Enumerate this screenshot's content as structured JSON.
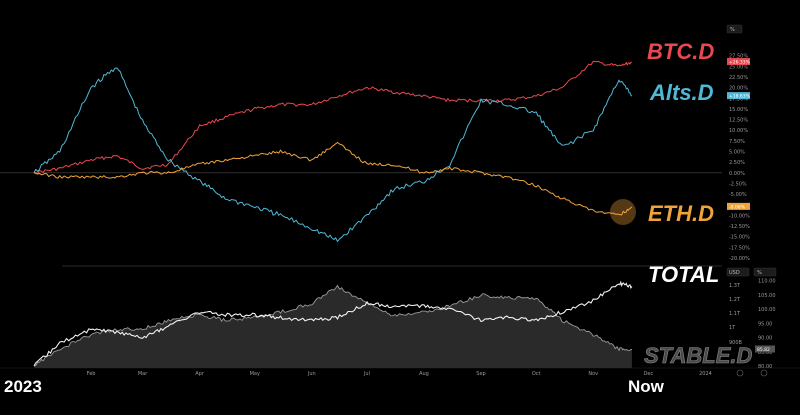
{
  "colors": {
    "btc": "#e8484f",
    "alts": "#4fb8d6",
    "eth": "#f0a33a",
    "total": "#f2f2f2",
    "stable": "#9a9a9a",
    "background": "#000000",
    "grid": "#3a3a3a"
  },
  "top_axis_button": "%",
  "bottom_axis_buttons": [
    "USD",
    "%"
  ],
  "corner_labels": {
    "start": "2023",
    "end": "Now"
  },
  "chart_data": [
    {
      "type": "line",
      "panel": "top",
      "y_unit": "percent change",
      "ylim": [
        -20,
        30
      ],
      "y_ticks": [
        "27.50%",
        "25.00%",
        "22.50%",
        "20.00%",
        "17.50%",
        "15.00%",
        "12.50%",
        "10.00%",
        "7.50%",
        "5.00%",
        "2.50%",
        "0.00%",
        "-2.50%",
        "-5.00%",
        "-7.50%",
        "-10.00%",
        "-12.50%",
        "-15.00%",
        "-17.50%",
        "-20.00%"
      ],
      "x_ticks": [
        "Feb",
        "Mar",
        "Apr",
        "May",
        "Jun",
        "Jul",
        "Aug",
        "Sep",
        "Oct",
        "Nov",
        "Dec",
        "2024"
      ],
      "x_domain": [
        "2023-01-01",
        "2024-01-10"
      ],
      "x": [
        "2023-01-01",
        "2023-01-15",
        "2023-02-01",
        "2023-02-15",
        "2023-03-01",
        "2023-03-15",
        "2023-04-01",
        "2023-04-15",
        "2023-05-01",
        "2023-05-15",
        "2023-06-01",
        "2023-06-15",
        "2023-07-01",
        "2023-07-15",
        "2023-08-01",
        "2023-08-15",
        "2023-09-01",
        "2023-09-15",
        "2023-10-01",
        "2023-10-15",
        "2023-11-01",
        "2023-11-15",
        "2023-11-22"
      ],
      "series": [
        {
          "name": "BTC.D",
          "badge": "+26.33%",
          "values": [
            0,
            1,
            3,
            4,
            1,
            2,
            11,
            13,
            15,
            16,
            16,
            18,
            20,
            19,
            18,
            17,
            17,
            17,
            18,
            20,
            26,
            25,
            26
          ]
        },
        {
          "name": "Alts.D",
          "badge": "+18.63%",
          "values": [
            0,
            5,
            20,
            25,
            12,
            3,
            -2,
            -6,
            -8,
            -10,
            -13,
            -16,
            -10,
            -4,
            -2,
            2,
            17,
            16,
            14,
            6,
            10,
            22,
            18
          ]
        },
        {
          "name": "ETH.D",
          "badge": "-8.06%",
          "values": [
            0,
            -1,
            -1,
            -1,
            0,
            0,
            2,
            3,
            4,
            5,
            3,
            7,
            2,
            2,
            0,
            1,
            0,
            -1,
            -3,
            -6,
            -9,
            -10,
            -8
          ]
        }
      ]
    },
    {
      "type": "line",
      "panel": "bottom",
      "y_unit": "USD",
      "y_ticks_left": [
        "1.3T",
        "1.2T",
        "1.1T",
        "1T",
        "900B"
      ],
      "y_ticks_right": [
        "110.00",
        "105.00",
        "100.00",
        "95.00",
        "90.00",
        "85.00",
        "80.00"
      ],
      "ylim": [
        80,
        112
      ],
      "x": [
        "2023-01-01",
        "2023-01-15",
        "2023-02-01",
        "2023-02-15",
        "2023-03-01",
        "2023-03-15",
        "2023-04-01",
        "2023-04-15",
        "2023-05-01",
        "2023-05-15",
        "2023-06-01",
        "2023-06-15",
        "2023-07-01",
        "2023-07-15",
        "2023-08-01",
        "2023-08-15",
        "2023-09-01",
        "2023-09-15",
        "2023-10-01",
        "2023-10-15",
        "2023-11-01",
        "2023-11-15",
        "2023-11-22"
      ],
      "series": [
        {
          "name": "TOTAL",
          "badge": "",
          "values": [
            80,
            88,
            93,
            92,
            90,
            94,
            99,
            98,
            98,
            97,
            96,
            97,
            102,
            101,
            101,
            100,
            96,
            97,
            96,
            99,
            103,
            109,
            108
          ]
        },
        {
          "name": "STABLE.D",
          "badge": "85.82",
          "values": [
            80,
            86,
            91,
            93,
            93,
            96,
            98,
            96,
            97,
            99,
            102,
            108,
            102,
            98,
            99,
            101,
            105,
            104,
            104,
            96,
            91,
            86,
            85.8
          ]
        }
      ]
    }
  ]
}
